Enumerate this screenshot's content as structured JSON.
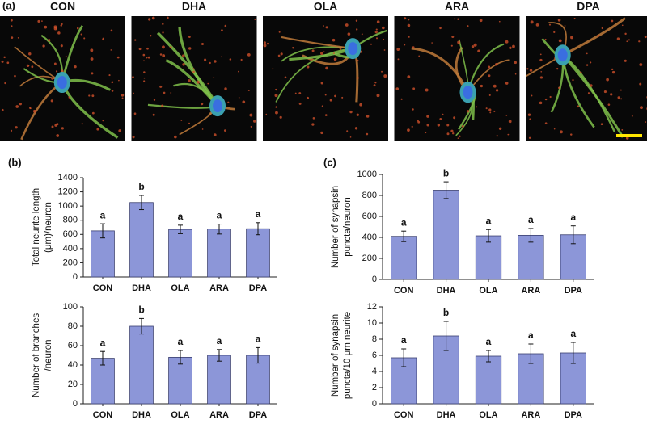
{
  "panel_labels": [
    "(a)",
    "(b)",
    "(c)"
  ],
  "image_labels": [
    "CON",
    "DHA",
    "OLA",
    "ARA",
    "DPA"
  ],
  "chart_data": [
    {
      "type": "bar",
      "ylabel": [
        "Total neurite length",
        "(μm)/neuron"
      ],
      "categories": [
        "CON",
        "DHA",
        "OLA",
        "ARA",
        "DPA"
      ],
      "values": [
        650,
        1050,
        670,
        675,
        680
      ],
      "errors": [
        100,
        100,
        60,
        70,
        85
      ],
      "annotations": [
        "a",
        "b",
        "a",
        "a",
        "a"
      ],
      "color": "#8c96d8",
      "ylim": [
        0,
        1400
      ],
      "yticks": [
        0,
        200,
        400,
        600,
        800,
        1000,
        1200,
        1400
      ]
    },
    {
      "type": "bar",
      "ylabel": [
        "Number of branches",
        "/neuron"
      ],
      "categories": [
        "CON",
        "DHA",
        "OLA",
        "ARA",
        "DPA"
      ],
      "values": [
        47,
        80,
        48,
        50,
        50
      ],
      "errors": [
        7,
        8,
        7,
        6,
        8
      ],
      "annotations": [
        "a",
        "b",
        "a",
        "a",
        "a"
      ],
      "color": "#8c96d8",
      "ylim": [
        0,
        100
      ],
      "yticks": [
        0,
        20,
        40,
        60,
        80,
        100
      ]
    },
    {
      "type": "bar",
      "ylabel": [
        "Number of synapsin",
        "puncta/neuron"
      ],
      "categories": [
        "CON",
        "DHA",
        "OLA",
        "ARA",
        "DPA"
      ],
      "values": [
        410,
        850,
        415,
        420,
        425
      ],
      "errors": [
        50,
        80,
        60,
        65,
        85
      ],
      "annotations": [
        "a",
        "b",
        "a",
        "a",
        "a"
      ],
      "color": "#8c96d8",
      "ylim": [
        0,
        1000
      ],
      "yticks": [
        0,
        200,
        400,
        600,
        800,
        1000
      ]
    },
    {
      "type": "bar",
      "ylabel": [
        "Number of synapsin",
        "puncta/10 μm neurite"
      ],
      "categories": [
        "CON",
        "DHA",
        "OLA",
        "ARA",
        "DPA"
      ],
      "values": [
        5.7,
        8.4,
        5.9,
        6.2,
        6.3
      ],
      "errors": [
        1.1,
        1.8,
        0.7,
        1.2,
        1.3
      ],
      "annotations": [
        "a",
        "b",
        "a",
        "a",
        "a"
      ],
      "color": "#8c96d8",
      "ylim": [
        0,
        12
      ],
      "yticks": [
        0,
        2,
        4,
        6,
        8,
        10,
        12
      ]
    }
  ]
}
